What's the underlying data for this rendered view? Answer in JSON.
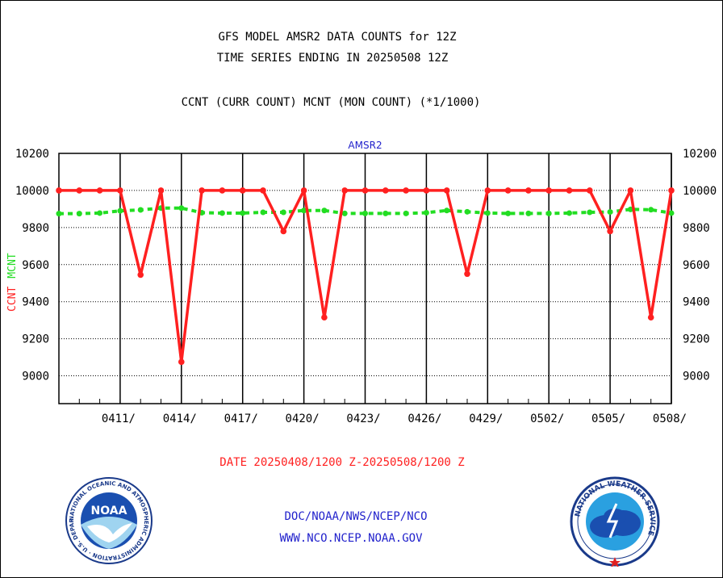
{
  "header": {
    "title_line1": "GFS MODEL AMSR2 DATA COUNTS for 12Z",
    "title_line2": "TIME SERIES ENDING IN 20250508 12Z",
    "subtitle": "CCNT (CURR COUNT) MCNT (MON COUNT) (*1/1000)"
  },
  "footer": {
    "date_range": "DATE 20250408/1200 Z-20250508/1200 Z",
    "org_path": "DOC/NOAA/NWS/NCEP/NCO",
    "website": "WWW.NCO.NCEP.NOAA.GOV"
  },
  "logos": {
    "noaa_text": "NOAA",
    "noaa_ring_text": "NATIONAL OCEANIC AND ATMOSPHERIC ADMINISTRATION · U.S. DEPARTMENT OF COMMERCE ·",
    "nws_ring_text": "NATIONAL WEATHER SERVICE"
  },
  "chart_data": {
    "type": "line",
    "title": "AMSR2",
    "ylabel_series1": "CCNT",
    "ylabel_series2": "MCNT",
    "ylim": [
      8850,
      10200
    ],
    "yticks": [
      9000,
      9200,
      9400,
      9600,
      9800,
      10000,
      10200
    ],
    "x_tick_labels": [
      "0411/",
      "0414/",
      "0417/",
      "0420/",
      "0423/",
      "0426/",
      "0429/",
      "0502/",
      "0505/",
      "0508/"
    ],
    "x_tick_days": [
      3,
      6,
      9,
      12,
      15,
      18,
      21,
      24,
      27,
      30
    ],
    "x_day_range": [
      0,
      30
    ],
    "grid": true,
    "colors": {
      "ccnt": "#ff2020",
      "mcnt": "#22dd22",
      "title": "#2222cc",
      "axis": "#000000"
    },
    "series": [
      {
        "name": "CCNT",
        "color": "#ff2020",
        "values": [
          10000,
          10000,
          10000,
          10000,
          9545,
          10000,
          9075,
          10000,
          10000,
          10000,
          10000,
          9780,
          10000,
          9315,
          10000,
          10000,
          10000,
          10000,
          10000,
          10000,
          9550,
          10000,
          10000,
          10000,
          10000,
          10000,
          10000,
          9780,
          10000,
          9315,
          10000
        ]
      },
      {
        "name": "MCNT",
        "color": "#22dd22",
        "values": [
          9875,
          9875,
          9878,
          9890,
          9895,
          9905,
          9905,
          9880,
          9878,
          9878,
          9882,
          9882,
          9892,
          9892,
          9876,
          9876,
          9876,
          9876,
          9880,
          9892,
          9885,
          9878,
          9876,
          9876,
          9876,
          9878,
          9882,
          9884,
          9898,
          9896,
          9878
        ]
      }
    ]
  }
}
